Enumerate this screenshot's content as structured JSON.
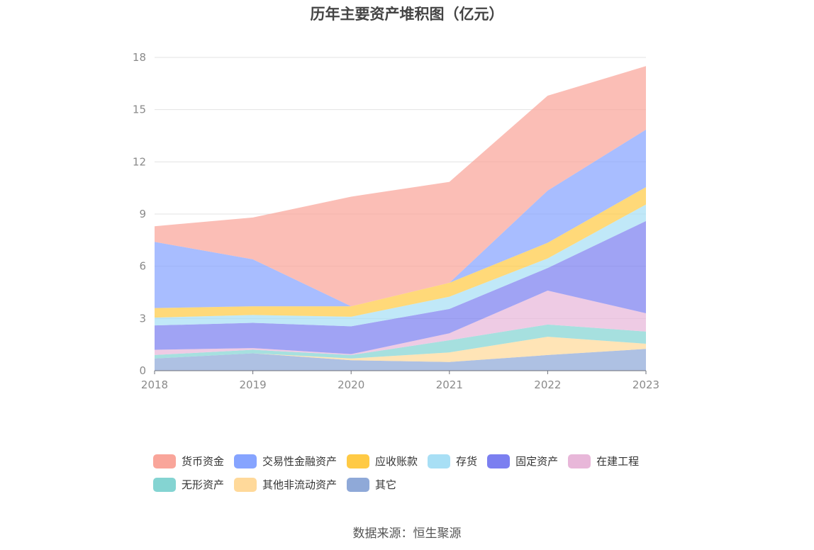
{
  "chart_data": {
    "type": "area",
    "stacked": true,
    "title": "历年主要资产堆积图（亿元）",
    "xlabel": "",
    "ylabel": "",
    "categories": [
      "2018",
      "2019",
      "2020",
      "2021",
      "2022",
      "2023"
    ],
    "y_ticks": [
      "0",
      "3",
      "6",
      "9",
      "12",
      "15",
      "18"
    ],
    "ylim": [
      0,
      18
    ],
    "grid": true,
    "legend_position": "bottom",
    "series": [
      {
        "name": "其它",
        "color": "#8fa9d8",
        "values": [
          0.7,
          1.0,
          0.6,
          0.5,
          0.9,
          1.25
        ]
      },
      {
        "name": "其他非流动资产",
        "color": "#ffd99a",
        "values": [
          0.0,
          0.0,
          0.1,
          0.55,
          1.05,
          0.3
        ]
      },
      {
        "name": "无形资产",
        "color": "#84d4d2",
        "values": [
          0.2,
          0.2,
          0.2,
          0.7,
          0.7,
          0.7
        ]
      },
      {
        "name": "在建工程",
        "color": "#e8b7d9",
        "values": [
          0.3,
          0.1,
          0.05,
          0.4,
          1.95,
          1.05
        ]
      },
      {
        "name": "固定资产",
        "color": "#7b7ff0",
        "values": [
          1.4,
          1.45,
          1.6,
          1.4,
          1.3,
          5.3
        ]
      },
      {
        "name": "存货",
        "color": "#a8dff5",
        "values": [
          0.45,
          0.45,
          0.55,
          0.7,
          0.55,
          0.95
        ]
      },
      {
        "name": "应收账款",
        "color": "#ffca45",
        "values": [
          0.55,
          0.5,
          0.6,
          0.8,
          0.9,
          1.0
        ]
      },
      {
        "name": "交易性金融资产",
        "color": "#86a4ff",
        "values": [
          3.8,
          2.7,
          0.0,
          0.0,
          3.0,
          3.3
        ]
      },
      {
        "name": "货币资金",
        "color": "#f9a59a",
        "values": [
          0.9,
          2.4,
          6.3,
          5.8,
          5.45,
          3.65
        ]
      }
    ]
  },
  "legend_order": [
    "货币资金",
    "交易性金融资产",
    "应收账款",
    "存货",
    "固定资产",
    "在建工程",
    "无形资产",
    "其他非流动资产",
    "其它"
  ],
  "source": "数据来源：恒生聚源"
}
